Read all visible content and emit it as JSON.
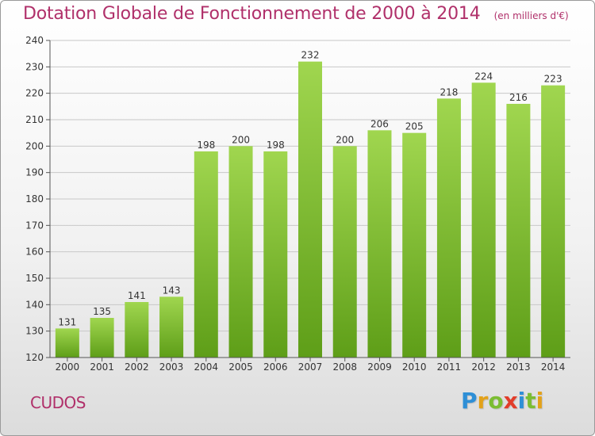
{
  "title": "Dotation Globale de Fonctionnement de 2000 à 2014",
  "unit_note": "(en milliers d'€)",
  "commune": "CUDOS",
  "brand": {
    "letters": [
      "P",
      "r",
      "o",
      "x",
      "i",
      "t",
      "i"
    ],
    "colors": [
      "#2e8fd6",
      "#e3a21a",
      "#7bbd32",
      "#e23d2a",
      "#2e8fd6",
      "#7bbd32",
      "#e3a21a"
    ]
  },
  "colors": {
    "title": "#b0306a",
    "bar_light": "#a0d64f",
    "bar_dark": "#5e9e18",
    "grid": "#c8c8c8"
  },
  "chart_data": {
    "type": "bar",
    "title": "Dotation Globale de Fonctionnement de 2000 à 2014",
    "subtitle": "(en milliers d'€)",
    "xlabel": "",
    "ylabel": "",
    "categories": [
      "2000",
      "2001",
      "2002",
      "2003",
      "2004",
      "2005",
      "2006",
      "2007",
      "2008",
      "2009",
      "2010",
      "2011",
      "2012",
      "2013",
      "2014"
    ],
    "values": [
      131,
      135,
      141,
      143,
      198,
      200,
      198,
      232,
      200,
      206,
      205,
      218,
      224,
      216,
      223
    ],
    "ylim": [
      120,
      240
    ],
    "yticks": [
      120,
      130,
      140,
      150,
      160,
      170,
      180,
      190,
      200,
      210,
      220,
      230,
      240
    ],
    "grid": true,
    "legend": "none"
  }
}
